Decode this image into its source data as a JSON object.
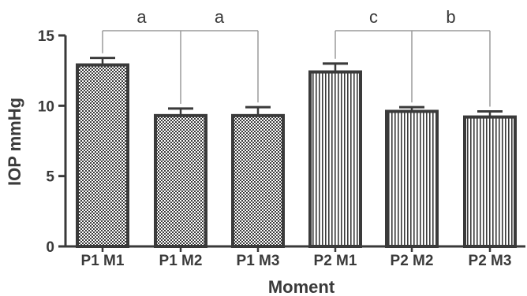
{
  "chart_data": {
    "type": "bar",
    "xlabel": "Moment",
    "ylabel": "IOP mmHg",
    "ylim": [
      0,
      15
    ],
    "yticks": [
      0,
      5,
      10,
      15
    ],
    "categories": [
      "P1 M1",
      "P1 M2",
      "P1 M3",
      "P2 M1",
      "P2 M2",
      "P2 M3"
    ],
    "values": [
      12.9,
      9.3,
      9.3,
      12.4,
      9.6,
      9.2
    ],
    "error_upper": [
      13.4,
      9.8,
      9.9,
      13.0,
      9.9,
      9.6
    ],
    "patterns": [
      "checker",
      "checker",
      "checker",
      "vertical-lines",
      "vertical-lines",
      "vertical-lines"
    ],
    "significance": [
      {
        "from": 0,
        "to": 1,
        "label": "a"
      },
      {
        "from": 1,
        "to": 2,
        "label": "a"
      },
      {
        "from": 3,
        "to": 4,
        "label": "c"
      },
      {
        "from": 4,
        "to": 5,
        "label": "b"
      }
    ],
    "grid": false,
    "colors": {
      "bar_outline": "#3a3a3a",
      "axis": "#3a3a3a",
      "bracket": "#9a9a9a"
    }
  }
}
